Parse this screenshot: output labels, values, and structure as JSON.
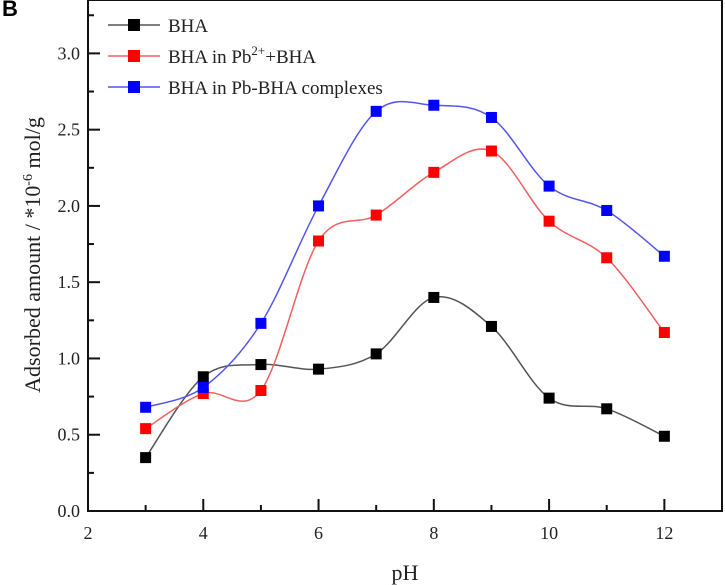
{
  "panel_label": "B",
  "chart_data": {
    "type": "line",
    "title": "",
    "xlabel": "pH",
    "ylabel": "Adsorbed amount / *10",
    "ylabel_exponent": "-6",
    "ylabel_unit": " mol/g",
    "xlim": [
      2,
      13
    ],
    "ylim": [
      0,
      3.35
    ],
    "xticks": [
      "2",
      "4",
      "6",
      "8",
      "10",
      "12"
    ],
    "yticks": [
      "0.0",
      "0.5",
      "1.0",
      "1.5",
      "2.0",
      "2.5",
      "3.0"
    ],
    "grid": false,
    "legend_position": "top-left",
    "marker": "square",
    "curve": "smoothed",
    "x": [
      3,
      4,
      5,
      6,
      7,
      8,
      9,
      10,
      11,
      12
    ],
    "series": [
      {
        "name": "BHA",
        "legend_parts": [
          "BHA",
          "",
          ""
        ],
        "color": "#000000",
        "line_color": "#555555",
        "values": [
          0.35,
          0.88,
          0.96,
          0.93,
          1.03,
          1.4,
          1.21,
          0.74,
          0.67,
          0.49
        ]
      },
      {
        "name": "BHA in Pb2++BHA",
        "legend_parts": [
          "BHA in Pb",
          "2+",
          "+BHA"
        ],
        "color": "#ff0000",
        "line_color": "#f06060",
        "values": [
          0.54,
          0.77,
          0.79,
          1.77,
          1.94,
          2.22,
          2.36,
          1.9,
          1.66,
          1.17
        ]
      },
      {
        "name": "BHA in Pb-BHA complexes",
        "legend_parts": [
          "BHA in Pb-BHA complexes",
          "",
          ""
        ],
        "color": "#0000ff",
        "line_color": "#5555ee",
        "values": [
          0.68,
          0.81,
          1.23,
          2.0,
          2.62,
          2.66,
          2.58,
          2.13,
          1.97,
          1.67
        ]
      }
    ]
  }
}
